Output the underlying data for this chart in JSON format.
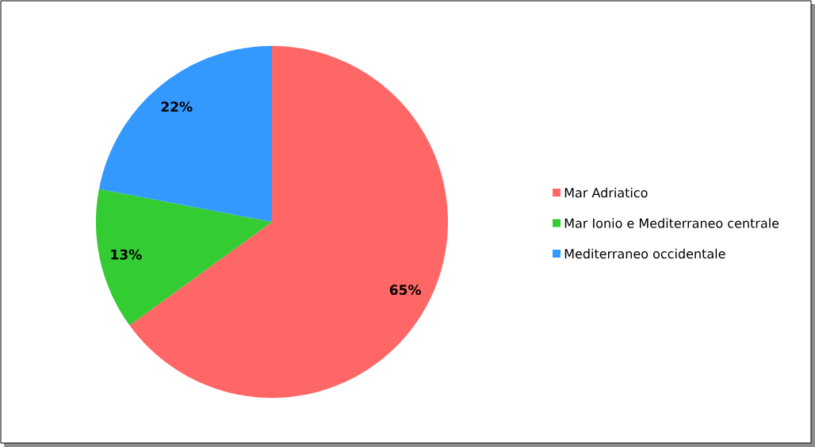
{
  "chart_data": {
    "type": "pie",
    "categories": [
      "Mar Adriatico",
      "Mar Ionio e Mediterraneo centrale",
      "Mediterraneo occidentale"
    ],
    "values": [
      65,
      13,
      22
    ],
    "colors": [
      "#ff6666",
      "#33cc33",
      "#3399ff"
    ],
    "value_labels": [
      "65%",
      "13%",
      "22%"
    ],
    "legend": "right"
  }
}
